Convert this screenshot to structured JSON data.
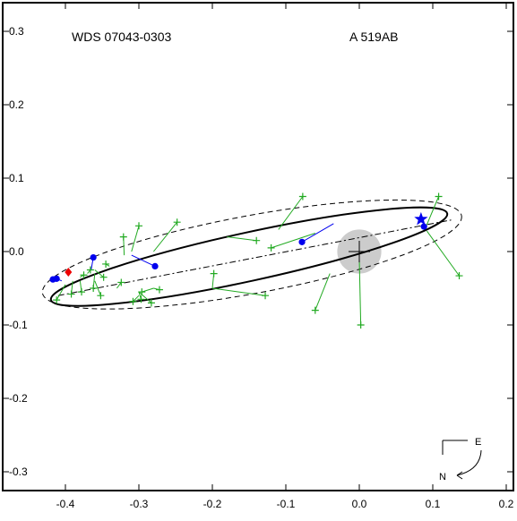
{
  "chart_data": {
    "type": "scatter",
    "title_left": "WDS 07043-0303",
    "title_right": "A   519AB",
    "xlim": [
      -0.42,
      0.2
    ],
    "ylim": [
      -0.35,
      0.34
    ],
    "x_ticks": [
      "-0.4",
      "-0.3",
      "-0.2",
      "-0.1",
      "0.0",
      "0.1",
      "0.2"
    ],
    "x_tick_values": [
      -0.4,
      -0.3,
      -0.2,
      -0.1,
      0.0,
      0.1,
      0.2
    ],
    "y_ticks": [
      "0.3",
      "0.2",
      "0.1",
      "0.0",
      "-0.1",
      "-0.2",
      "-0.3"
    ],
    "y_tick_values": [
      0.3,
      0.2,
      0.1,
      0.0,
      -0.1,
      -0.2,
      -0.3
    ],
    "grid": false,
    "compass": {
      "east_label": "E",
      "north_label": "N"
    },
    "orbit_new": {
      "center": [
        -0.15,
        -0.007
      ],
      "semi_major": 0.276,
      "semi_minor": 0.033,
      "angle_deg": 12.3
    },
    "orbit_old": {
      "center": [
        -0.146,
        -0.004
      ],
      "semi_major": 0.29,
      "semi_minor": 0.053,
      "angle_deg": 10.5
    },
    "line_of_nodes": [
      [
        -0.41,
        -0.06
      ],
      [
        0.125,
        0.043
      ]
    ],
    "primary_star": [
      0.0,
      0.0
    ],
    "primary_disk_radius": 0.03,
    "periastron_star": [
      0.084,
      0.044
    ],
    "current_epoch_marker": [
      -0.396,
      -0.028
    ],
    "micrometer_measures": [
      {
        "obs": [
          0.108,
          0.075
        ],
        "calc": [
          0.09,
          0.032
        ]
      },
      {
        "obs": [
          0.136,
          -0.033
        ],
        "calc": [
          0.092,
          0.028
        ]
      },
      {
        "obs": [
          -0.077,
          0.075
        ],
        "calc": [
          -0.11,
          0.03
        ]
      },
      {
        "obs": [
          -0.14,
          0.015
        ],
        "calc": [
          -0.18,
          0.02
        ]
      },
      {
        "obs": [
          -0.12,
          0.005
        ],
        "calc": [
          -0.06,
          0.025
        ]
      },
      {
        "obs": [
          0.002,
          -0.1
        ],
        "calc": [
          0.0,
          -0.01
        ]
      },
      {
        "obs": [
          -0.06,
          -0.08
        ],
        "calc": [
          -0.04,
          -0.03
        ]
      },
      {
        "obs": [
          -0.128,
          -0.06
        ],
        "calc": [
          -0.2,
          -0.05
        ]
      },
      {
        "obs": [
          -0.198,
          -0.03
        ],
        "calc": [
          -0.2,
          -0.05
        ]
      },
      {
        "obs": [
          -0.248,
          0.04
        ],
        "calc": [
          -0.28,
          0.0
        ]
      },
      {
        "obs": [
          -0.3,
          0.035
        ],
        "calc": [
          -0.31,
          0.0
        ]
      },
      {
        "obs": [
          -0.321,
          0.02
        ],
        "calc": [
          -0.32,
          -0.005
        ]
      },
      {
        "obs": [
          -0.345,
          -0.017
        ],
        "calc": [
          -0.34,
          -0.02
        ]
      },
      {
        "obs": [
          -0.348,
          -0.035
        ],
        "calc": [
          -0.36,
          -0.025
        ]
      },
      {
        "obs": [
          -0.362,
          -0.05
        ],
        "calc": [
          -0.36,
          -0.03
        ]
      },
      {
        "obs": [
          -0.352,
          -0.06
        ],
        "calc": [
          -0.36,
          -0.04
        ]
      },
      {
        "obs": [
          -0.378,
          -0.055
        ],
        "calc": [
          -0.38,
          -0.04
        ]
      },
      {
        "obs": [
          -0.392,
          -0.058
        ],
        "calc": [
          -0.39,
          -0.04
        ]
      },
      {
        "obs": [
          -0.412,
          -0.066
        ],
        "calc": [
          -0.4,
          -0.045
        ]
      },
      {
        "obs": [
          -0.324,
          -0.042
        ],
        "calc": [
          -0.33,
          -0.05
        ]
      },
      {
        "obs": [
          -0.283,
          -0.07
        ],
        "calc": [
          -0.3,
          -0.055
        ]
      },
      {
        "obs": [
          -0.297,
          -0.065
        ],
        "calc": [
          -0.3,
          -0.055
        ]
      },
      {
        "obs": [
          -0.308,
          -0.068
        ],
        "calc": [
          -0.3,
          -0.06
        ]
      },
      {
        "obs": [
          -0.296,
          -0.055
        ],
        "calc": [
          -0.28,
          -0.05
        ]
      },
      {
        "obs": [
          -0.272,
          -0.052
        ],
        "calc": [
          -0.28,
          -0.05
        ]
      },
      {
        "obs": [
          -0.375,
          -0.032
        ],
        "calc": [
          -0.38,
          -0.035
        ]
      },
      {
        "obs": [
          -0.366,
          -0.025
        ],
        "calc": [
          -0.37,
          -0.03
        ]
      }
    ],
    "speckle_measures": [
      {
        "obs": [
          -0.278,
          -0.02
        ],
        "calc": [
          -0.31,
          -0.005
        ]
      },
      {
        "obs": [
          -0.362,
          -0.008
        ],
        "calc": [
          -0.365,
          -0.025
        ]
      },
      {
        "obs": [
          -0.412,
          -0.037
        ],
        "calc": [
          -0.405,
          -0.04
        ]
      },
      {
        "obs": [
          -0.417,
          -0.038
        ],
        "calc": [
          -0.41,
          -0.04
        ]
      },
      {
        "obs": [
          -0.078,
          0.013
        ],
        "calc": [
          -0.035,
          0.038
        ]
      },
      {
        "obs": [
          0.088,
          0.034
        ],
        "calc": [
          0.085,
          0.037
        ]
      }
    ],
    "colors": {
      "new_orbit": "#000000",
      "old_orbit": "#000000",
      "micrometer": "#22aa22",
      "speckle": "#0000ee",
      "periastron": "#0000ee",
      "epoch_marker": "#ee0000",
      "primary_disk": "#cccccc"
    }
  }
}
